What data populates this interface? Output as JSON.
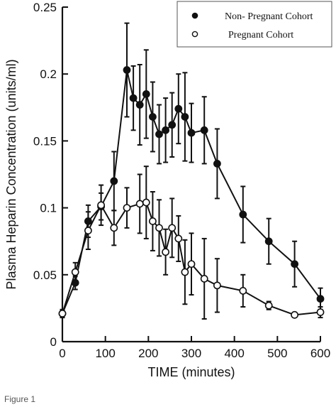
{
  "chart_data": {
    "type": "line",
    "xlabel": "TIME (minutes)",
    "ylabel": "Plasma Heparin Concentration (units/ml)",
    "xlim": [
      0,
      600
    ],
    "ylim": [
      0,
      0.25
    ],
    "xticks": [
      0,
      100,
      200,
      300,
      400,
      500,
      600
    ],
    "yticks": [
      0,
      0.05,
      0.1,
      0.15,
      0.2,
      0.25
    ],
    "ytick_labels": [
      "0",
      "0.05",
      "0.1",
      "0.15",
      "0.2",
      "0.25"
    ],
    "grid": false,
    "legend_position": "top-right",
    "series": [
      {
        "name": "Non- Pregnant Cohort",
        "marker": "filled-circle",
        "x": [
          0,
          30,
          60,
          90,
          120,
          150,
          165,
          180,
          195,
          210,
          225,
          240,
          255,
          270,
          285,
          300,
          330,
          360,
          420,
          480,
          540,
          600
        ],
        "y": [
          0.021,
          0.044,
          0.09,
          0.101,
          0.12,
          0.203,
          0.182,
          0.177,
          0.185,
          0.168,
          0.155,
          0.158,
          0.162,
          0.174,
          0.168,
          0.156,
          0.158,
          0.133,
          0.095,
          0.075,
          0.058,
          0.032
        ],
        "err": [
          0.002,
          0.005,
          0.012,
          0.01,
          0.022,
          0.035,
          0.024,
          0.03,
          0.033,
          0.026,
          0.022,
          0.024,
          0.024,
          0.026,
          0.033,
          0.022,
          0.025,
          0.026,
          0.021,
          0.017,
          0.017,
          0.008
        ]
      },
      {
        "name": "Pregnant Cohort",
        "marker": "open-circle",
        "x": [
          0,
          30,
          60,
          90,
          120,
          150,
          180,
          195,
          210,
          225,
          240,
          255,
          270,
          285,
          300,
          330,
          360,
          420,
          480,
          540,
          600
        ],
        "y": [
          0.021,
          0.052,
          0.083,
          0.102,
          0.085,
          0.1,
          0.103,
          0.104,
          0.09,
          0.085,
          0.067,
          0.085,
          0.077,
          0.052,
          0.058,
          0.047,
          0.042,
          0.038,
          0.027,
          0.02,
          0.022
        ],
        "err": [
          0.003,
          0.007,
          0.014,
          0.015,
          0.013,
          0.015,
          0.022,
          0.027,
          0.022,
          0.021,
          0.017,
          0.022,
          0.017,
          0.024,
          0.023,
          0.03,
          0.02,
          0.012,
          0.003,
          0.001,
          0.004
        ]
      }
    ]
  },
  "caption": "Figure 1"
}
